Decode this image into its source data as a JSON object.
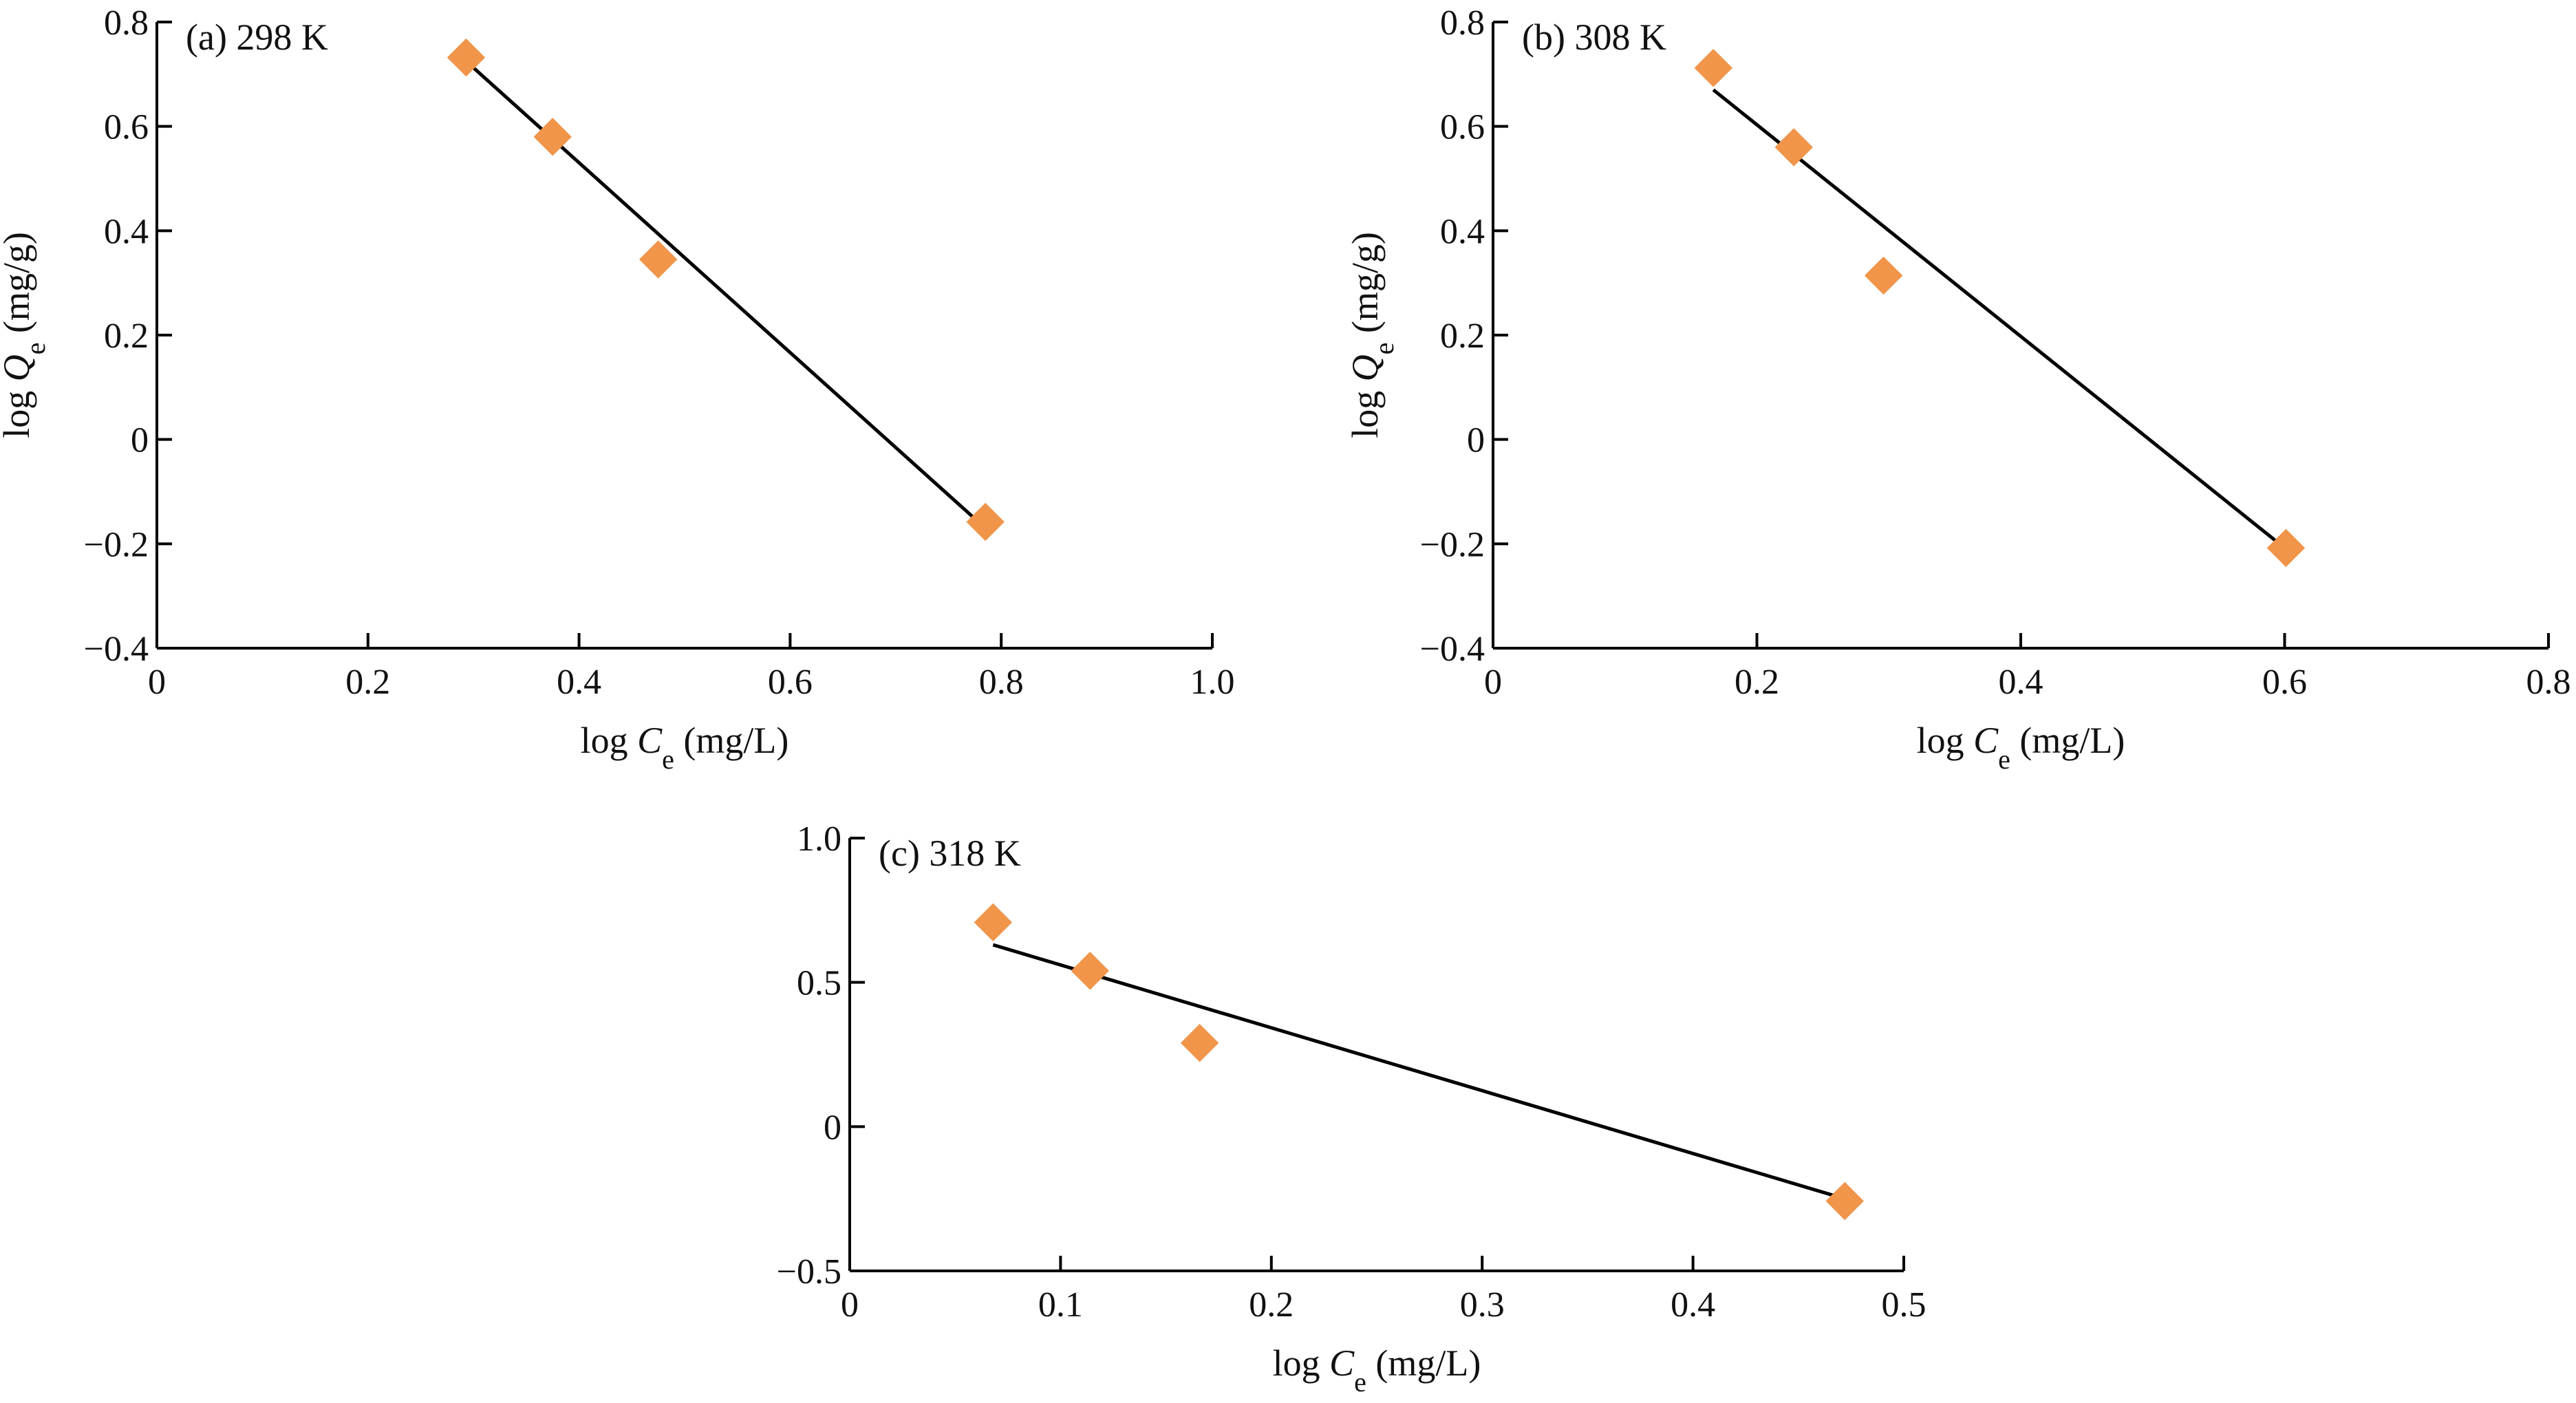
{
  "colors": {
    "marker": "#F0954A",
    "line": "#000000",
    "axis": "#000000",
    "background": "#FFFFFF"
  },
  "chart_data": [
    {
      "type": "scatter",
      "panel_label": "(a) 298 K",
      "xlabel": {
        "prefix": "log ",
        "var": "C",
        "sub": "e",
        "unit": " (mg/L)"
      },
      "ylabel": {
        "prefix": "log ",
        "var": "Q",
        "sub": "e",
        "unit": " (mg/g)"
      },
      "xlim": [
        0,
        1.0
      ],
      "ylim": [
        -0.4,
        0.8
      ],
      "xticks": [
        0,
        0.2,
        0.4,
        0.6,
        0.8,
        1.0
      ],
      "xtick_labels": [
        "0",
        "0.2",
        "0.4",
        "0.6",
        "0.8",
        "1.0"
      ],
      "yticks": [
        -0.4,
        -0.2,
        0,
        0.2,
        0.4,
        0.6,
        0.8
      ],
      "ytick_labels": [
        "−0.4",
        "−0.2",
        "0",
        "0.2",
        "0.4",
        "0.6",
        "0.8"
      ],
      "grid": false,
      "legend": "none",
      "points": [
        {
          "x": 0.293,
          "y": 0.732
        },
        {
          "x": 0.375,
          "y": 0.58
        },
        {
          "x": 0.475,
          "y": 0.345
        },
        {
          "x": 0.785,
          "y": -0.158
        }
      ],
      "fit_line": {
        "x": [
          0.293,
          0.785
        ],
        "y": [
          0.725,
          -0.17
        ]
      }
    },
    {
      "type": "scatter",
      "panel_label": "(b) 308 K",
      "xlabel": {
        "prefix": "log ",
        "var": "C",
        "sub": "e",
        "unit": " (mg/L)"
      },
      "ylabel": {
        "prefix": "log ",
        "var": "Q",
        "sub": "e",
        "unit": " (mg/g)"
      },
      "xlim": [
        0,
        0.8
      ],
      "ylim": [
        -0.4,
        0.8
      ],
      "xticks": [
        0,
        0.2,
        0.4,
        0.6,
        0.8
      ],
      "xtick_labels": [
        "0",
        "0.2",
        "0.4",
        "0.6",
        "0.8"
      ],
      "yticks": [
        -0.4,
        -0.2,
        0,
        0.2,
        0.4,
        0.6,
        0.8
      ],
      "ytick_labels": [
        "−0.4",
        "−0.2",
        "0",
        "0.2",
        "0.4",
        "0.6",
        "0.8"
      ],
      "grid": false,
      "legend": "none",
      "points": [
        {
          "x": 0.167,
          "y": 0.712
        },
        {
          "x": 0.228,
          "y": 0.56
        },
        {
          "x": 0.296,
          "y": 0.314
        },
        {
          "x": 0.601,
          "y": -0.208
        }
      ],
      "fit_line": {
        "x": [
          0.167,
          0.601
        ],
        "y": [
          0.67,
          -0.21
        ]
      }
    },
    {
      "type": "scatter",
      "panel_label": "(c) 318 K",
      "xlabel": {
        "prefix": "log ",
        "var": "C",
        "sub": "e",
        "unit": " (mg/L)"
      },
      "ylabel": null,
      "xlim": [
        0,
        0.5
      ],
      "ylim": [
        -0.5,
        1.0
      ],
      "xticks": [
        0,
        0.1,
        0.2,
        0.3,
        0.4,
        0.5
      ],
      "xtick_labels": [
        "0",
        "0.1",
        "0.2",
        "0.3",
        "0.4",
        "0.5"
      ],
      "yticks": [
        -0.5,
        0,
        0.5,
        1.0
      ],
      "ytick_labels": [
        "−0.5",
        "0",
        "0.5",
        "1.0"
      ],
      "grid": false,
      "legend": "none",
      "points": [
        {
          "x": 0.068,
          "y": 0.708
        },
        {
          "x": 0.114,
          "y": 0.54
        },
        {
          "x": 0.166,
          "y": 0.29
        },
        {
          "x": 0.472,
          "y": -0.258
        }
      ],
      "fit_line": {
        "x": [
          0.068,
          0.472
        ],
        "y": [
          0.63,
          -0.25
        ]
      }
    }
  ]
}
